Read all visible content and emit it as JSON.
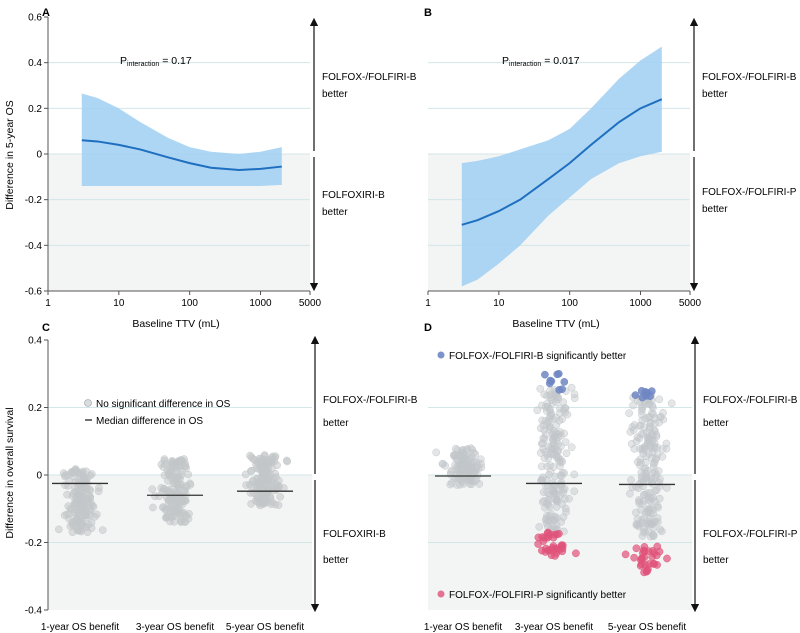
{
  "colors": {
    "band": "#9fcff2",
    "curve": "#1f6fc0",
    "dot_grey": "#c2c6c9",
    "dot_blue": "#6f86c2",
    "dot_red": "#e0537a",
    "shade": "#f3f4f4",
    "grid": "#d3e6e8",
    "arrow": "#111111",
    "median": "#333333"
  },
  "chart_data": [
    {
      "panel": "A",
      "type": "line",
      "ylabel": "Difference in 5-year OS",
      "xlabel": "Baseline TTV (mL)",
      "x_scale": "log",
      "xlim": [
        1,
        5000
      ],
      "ylim": [
        -0.6,
        0.6
      ],
      "x_ticks": [
        {
          "v": 1,
          "label": "1"
        },
        {
          "v": 10,
          "label": "10"
        },
        {
          "v": 100,
          "label": "100"
        },
        {
          "v": 1000,
          "label": "1000"
        },
        {
          "v": 5000,
          "label": "5000"
        }
      ],
      "y_ticks": [
        {
          "v": -0.6,
          "label": "-0.6"
        },
        {
          "v": -0.4,
          "label": "-0.4"
        },
        {
          "v": -0.2,
          "label": "-0.2"
        },
        {
          "v": 0,
          "label": "0"
        },
        {
          "v": 0.2,
          "label": "0.2"
        },
        {
          "v": 0.4,
          "label": "0.4"
        },
        {
          "v": 0.6,
          "label": "0.6"
        }
      ],
      "annotation": {
        "main": "P",
        "sub": "interaction",
        "rest": " = 0.17"
      },
      "upper_label": [
        "FOLFOX-/FOLFIRI-B",
        "better"
      ],
      "lower_label": [
        "FOLFOXIRI-B",
        "better"
      ],
      "curve": {
        "x": [
          3,
          5,
          10,
          20,
          50,
          100,
          200,
          500,
          1000,
          2000
        ],
        "y": [
          0.06,
          0.055,
          0.04,
          0.02,
          -0.015,
          -0.04,
          -0.06,
          -0.07,
          -0.065,
          -0.055
        ]
      },
      "band_upper": {
        "x": [
          3,
          5,
          10,
          20,
          50,
          100,
          200,
          500,
          1000,
          2000
        ],
        "y": [
          0.265,
          0.245,
          0.2,
          0.14,
          0.07,
          0.03,
          0.01,
          0.0,
          0.01,
          0.03
        ]
      },
      "band_lower": {
        "x": [
          3,
          5,
          10,
          20,
          50,
          100,
          200,
          500,
          1000,
          2000
        ],
        "y": [
          -0.14,
          -0.14,
          -0.14,
          -0.14,
          -0.14,
          -0.14,
          -0.14,
          -0.14,
          -0.14,
          -0.135
        ]
      }
    },
    {
      "panel": "B",
      "type": "line",
      "xlabel": "Baseline TTV (mL)",
      "x_scale": "log",
      "xlim": [
        1,
        5000
      ],
      "ylim": [
        -0.6,
        0.6
      ],
      "x_ticks": [
        {
          "v": 1,
          "label": "1"
        },
        {
          "v": 10,
          "label": "10"
        },
        {
          "v": 100,
          "label": "100"
        },
        {
          "v": 1000,
          "label": "1000"
        },
        {
          "v": 5000,
          "label": "5000"
        }
      ],
      "annotation": {
        "main": "P",
        "sub": "interaction",
        "rest": " = 0.017"
      },
      "upper_label": [
        "FOLFOX-/FOLFIRI-B",
        "better"
      ],
      "lower_label": [
        "FOLFOX-/FOLFIRI-P",
        "better"
      ],
      "curve": {
        "x": [
          3,
          5,
          10,
          20,
          50,
          100,
          200,
          500,
          1000,
          2000
        ],
        "y": [
          -0.31,
          -0.29,
          -0.25,
          -0.2,
          -0.11,
          -0.04,
          0.04,
          0.14,
          0.2,
          0.24
        ]
      },
      "band_upper": {
        "x": [
          3,
          5,
          10,
          20,
          50,
          100,
          200,
          500,
          1000,
          2000
        ],
        "y": [
          -0.04,
          -0.03,
          -0.01,
          0.02,
          0.06,
          0.11,
          0.2,
          0.33,
          0.41,
          0.47
        ]
      },
      "band_lower": {
        "x": [
          3,
          5,
          10,
          20,
          50,
          100,
          200,
          500,
          1000,
          2000
        ],
        "y": [
          -0.58,
          -0.55,
          -0.48,
          -0.4,
          -0.27,
          -0.19,
          -0.11,
          -0.04,
          -0.01,
          0.01
        ]
      }
    },
    {
      "panel": "C",
      "type": "scatter",
      "ylabel": "Difference in overall survival",
      "ylim": [
        -0.4,
        0.4
      ],
      "y_ticks": [
        {
          "v": -0.4,
          "label": "-0.4"
        },
        {
          "v": -0.2,
          "label": "-0.2"
        },
        {
          "v": 0,
          "label": "0"
        },
        {
          "v": 0.2,
          "label": "0.2"
        },
        {
          "v": 0.4,
          "label": "0.4"
        }
      ],
      "categories": [
        "1-year OS benefit",
        "3-year OS benefit",
        "5-year OS benefit"
      ],
      "medians": [
        -0.025,
        -0.06,
        -0.048
      ],
      "legend": {
        "grey": "No significant difference in OS",
        "median": "Median difference in OS"
      },
      "upper_label": [
        "FOLFOX-/FOLFIRI-B",
        "better"
      ],
      "lower_label": [
        "FOLFOXIRI-B",
        "better"
      ],
      "groups": [
        {
          "n": 150,
          "grey_range": [
            -0.17,
            0.02
          ],
          "center": -0.02
        },
        {
          "n": 150,
          "grey_range": [
            -0.14,
            0.05
          ],
          "center": -0.04
        },
        {
          "n": 160,
          "grey_range": [
            -0.09,
            0.06
          ],
          "center": -0.03
        }
      ]
    },
    {
      "panel": "D",
      "type": "scatter",
      "ylim": [
        -0.4,
        0.4
      ],
      "categories": [
        "1-year OS benefit",
        "3-year OS benefit",
        "5-year OS benefit"
      ],
      "medians": [
        -0.003,
        -0.025,
        -0.028
      ],
      "legend": {
        "blue": "FOLFOX-/FOLFIRI-B significantly better",
        "red": "FOLFOX-/FOLFIRI-P significantly better"
      },
      "upper_label": [
        "FOLFOX-/FOLFIRI-B",
        "better"
      ],
      "lower_label": [
        "FOLFOX-/FOLFIRI-P",
        "better"
      ],
      "groups": [
        {
          "n_grey": 110,
          "grey_range": [
            -0.03,
            0.08
          ],
          "n_blue": 0,
          "blue_range": [
            0,
            0
          ],
          "n_red": 0,
          "red_range": [
            0,
            0
          ]
        },
        {
          "n_grey": 190,
          "grey_range": [
            -0.17,
            0.26
          ],
          "n_blue": 9,
          "blue_range": [
            0.25,
            0.3
          ],
          "n_red": 34,
          "red_range": [
            -0.24,
            -0.17
          ]
        },
        {
          "n_grey": 200,
          "grey_range": [
            -0.19,
            0.24
          ],
          "n_blue": 8,
          "blue_range": [
            0.22,
            0.25
          ],
          "n_red": 30,
          "red_range": [
            -0.29,
            -0.21
          ]
        }
      ]
    }
  ]
}
